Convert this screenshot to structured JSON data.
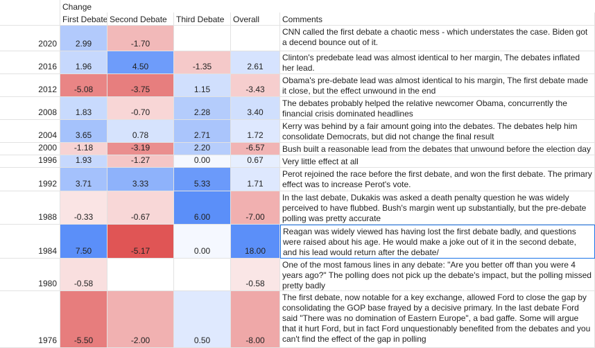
{
  "header": {
    "change_label": "Change",
    "columns": [
      "First Debate",
      "Second Debate",
      "Third Debate",
      "Overall",
      "Comments"
    ]
  },
  "rows": [
    {
      "year": "2020",
      "first": "2.99",
      "second": "-1.70",
      "third": "",
      "overall": "",
      "comment": "CNN called the first debate a chaotic mess - which understates the case. Biden got a decend bounce out of it."
    },
    {
      "year": "2016",
      "first": "1.96",
      "second": "4.50",
      "third": "-1.35",
      "overall": "2.61",
      "comment": "Clinton's predebate lead was almost identical to her margin,  The debates inflated her lead."
    },
    {
      "year": "2012",
      "first": "-5.08",
      "second": "-3.75",
      "third": "1.15",
      "overall": "-3.43",
      "comment": "Obama's pre-debate lead was almost identical to his margin, The first debate made it close, but the effect unwound in the end"
    },
    {
      "year": "2008",
      "first": "1.83",
      "second": "-0.70",
      "third": "2.28",
      "overall": "3.40",
      "comment": "The debates probably helped the relative newcomer Obama, concurrently the financial crisis dominated headlines"
    },
    {
      "year": "2004",
      "first": "3.65",
      "second": "0.78",
      "third": "2.71",
      "overall": "1.72",
      "comment": "Kerry was behind by a fair amount going into the debates.  The debates help him consolidate Democrats, but did not change the final result"
    },
    {
      "year": "2000",
      "first": "-1.18",
      "second": "-3.19",
      "third": "2.20",
      "overall": "-6.57",
      "comment": "Bush built a reasonable lead from the debates that unwound before the election day"
    },
    {
      "year": "1996",
      "first": "1.93",
      "second": "-1.27",
      "third": "0.00",
      "overall": "0.67",
      "comment": "Very little effect at all"
    },
    {
      "year": "1992",
      "first": "3.71",
      "second": "3.33",
      "third": "5.33",
      "overall": "1.71",
      "comment": "Perot rejoined the race before the first debate, and won the first debate.  The primary effect was to increase Perot's vote."
    },
    {
      "year": "1988",
      "first": "-0.33",
      "second": "-0.67",
      "third": "6.00",
      "overall": "-7.00",
      "comment": "In the last debate, Dukakis was asked a death penalty question he was widely perceived to have flubbed.  Bush's margin went up substantially, but the pre-debate polling was pretty accurate"
    },
    {
      "year": "1984",
      "first": "7.50",
      "second": "-5.17",
      "third": "0.00",
      "overall": "18.00",
      "comment": "Reagan was widely viewed has having lost the first debate badly, and questions were raised about his age.  He would make a joke out of it in the second debate, and his lead would return after the debate/"
    },
    {
      "year": "1980",
      "first": "-0.58",
      "second": "",
      "third": "",
      "overall": "-0.58",
      "comment": "One of the most famous lines in any debate: \"Are you better off than you were 4 years ago?\"  The polling does not pick up the debate's impact, but the polling missed pretty badly"
    },
    {
      "year": "1976",
      "first": "-5.50",
      "second": "-2.00",
      "third": "0.50",
      "overall": "-8.00",
      "comment": "The first debate, now notable for a key exchange, allowed Ford to close the gap by consolidating the GOP base frayed by a decisive primary. In the last debate Ford said \"There was no domination of Eastern Europe\", a bad gaffe.  Some will argue that it hurt Ford, but in fact Ford unquestionably benefited from the debates and you can't find the effect of the gap in polling"
    }
  ],
  "colors": {
    "positive": "#5b8ff9",
    "negative": "#e05555",
    "selection": "#1a73e8",
    "gridline": "#e2e2e2"
  }
}
